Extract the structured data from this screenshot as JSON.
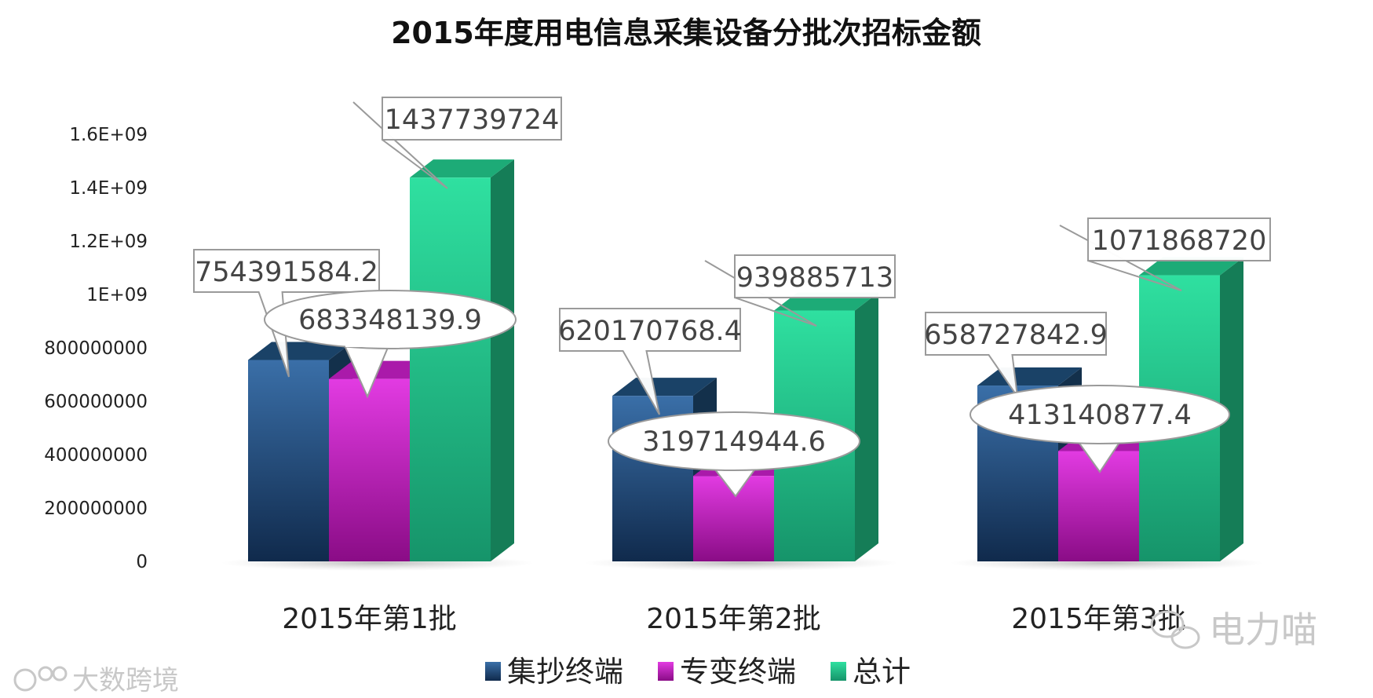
{
  "chart_data": {
    "type": "bar",
    "title": "2015年度用电信息采集设备分批次招标金额",
    "xlabel": "",
    "ylabel": "",
    "categories": [
      "2015年第1批",
      "2015年第2批",
      "2015年第3批"
    ],
    "series": [
      {
        "name": "集抄终端",
        "values": [
          754391584.2,
          620170768.4,
          658727842.9
        ],
        "color": "#1f4e79"
      },
      {
        "name": "专变终端",
        "values": [
          683348139.9,
          319714944.6,
          413140877.4
        ],
        "color": "#c81ec8"
      },
      {
        "name": "总计",
        "values": [
          1437739724,
          939885713,
          1071868720
        ],
        "color": "#22c98c"
      }
    ],
    "data_labels": [
      [
        "754391584.2",
        "683348139.9",
        "1437739724"
      ],
      [
        "620170768.4",
        "319714944.6",
        "939885713"
      ],
      [
        "658727842.9",
        "413140877.4",
        "1071868720"
      ]
    ],
    "yticks": [
      {
        "value": 0,
        "label": "0"
      },
      {
        "value": 200000000,
        "label": "200000000"
      },
      {
        "value": 400000000,
        "label": "400000000"
      },
      {
        "value": 600000000,
        "label": "600000000"
      },
      {
        "value": 800000000,
        "label": "800000000"
      },
      {
        "value": 1000000000,
        "label": "1E+09"
      },
      {
        "value": 1200000000,
        "label": "1.2E+09"
      },
      {
        "value": 1400000000,
        "label": "1.4E+09"
      },
      {
        "value": 1600000000,
        "label": "1.6E+09"
      }
    ],
    "ylim": [
      0,
      1600000000
    ],
    "grid": false,
    "legend_position": "bottom"
  },
  "watermarks": {
    "bottom_left_text": "大数跨境",
    "bottom_right_text": "电力喵",
    "bottom_left_icon": "logo-icon",
    "bottom_right_icon": "wechat-icon"
  }
}
